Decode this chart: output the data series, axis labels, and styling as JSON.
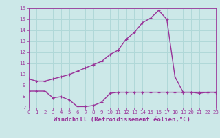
{
  "xlabel": "Windchill (Refroidissement éolien,°C)",
  "bg_color": "#cce8e8",
  "line1_x": [
    0,
    1,
    2,
    3,
    4,
    5,
    6,
    7,
    8,
    9,
    10,
    11,
    12,
    13,
    14,
    15,
    16,
    17,
    18,
    19,
    20,
    21,
    22,
    23
  ],
  "line1_y": [
    9.6,
    9.4,
    9.4,
    9.6,
    9.8,
    10.0,
    10.3,
    10.6,
    10.9,
    11.2,
    11.8,
    12.2,
    13.2,
    13.8,
    14.7,
    15.1,
    15.8,
    15.0,
    9.8,
    8.4,
    8.4,
    8.3,
    8.4,
    8.4
  ],
  "line2_x": [
    0,
    1,
    2,
    3,
    4,
    5,
    6,
    7,
    8,
    9,
    10,
    11,
    12,
    13,
    14,
    15,
    16,
    17,
    18,
    19,
    20,
    21,
    22,
    23
  ],
  "line2_y": [
    8.5,
    8.5,
    8.5,
    7.9,
    8.0,
    7.7,
    7.1,
    7.1,
    7.2,
    7.5,
    8.3,
    8.4,
    8.4,
    8.4,
    8.4,
    8.4,
    8.4,
    8.4,
    8.4,
    8.4,
    8.4,
    8.4,
    8.4,
    8.4
  ],
  "line_color": "#993399",
  "grid_color": "#b0d8d8",
  "ylim": [
    7,
    16
  ],
  "xlim": [
    0,
    23
  ],
  "yticks": [
    7,
    8,
    9,
    10,
    11,
    12,
    13,
    14,
    15,
    16
  ],
  "xticks": [
    0,
    1,
    2,
    3,
    4,
    5,
    6,
    7,
    8,
    9,
    10,
    11,
    12,
    13,
    14,
    15,
    16,
    17,
    18,
    19,
    20,
    21,
    22,
    23
  ],
  "marker": "+",
  "markersize": 3.5,
  "linewidth": 1.0,
  "tick_fontsize": 5.0,
  "xlabel_fontsize": 6.5
}
